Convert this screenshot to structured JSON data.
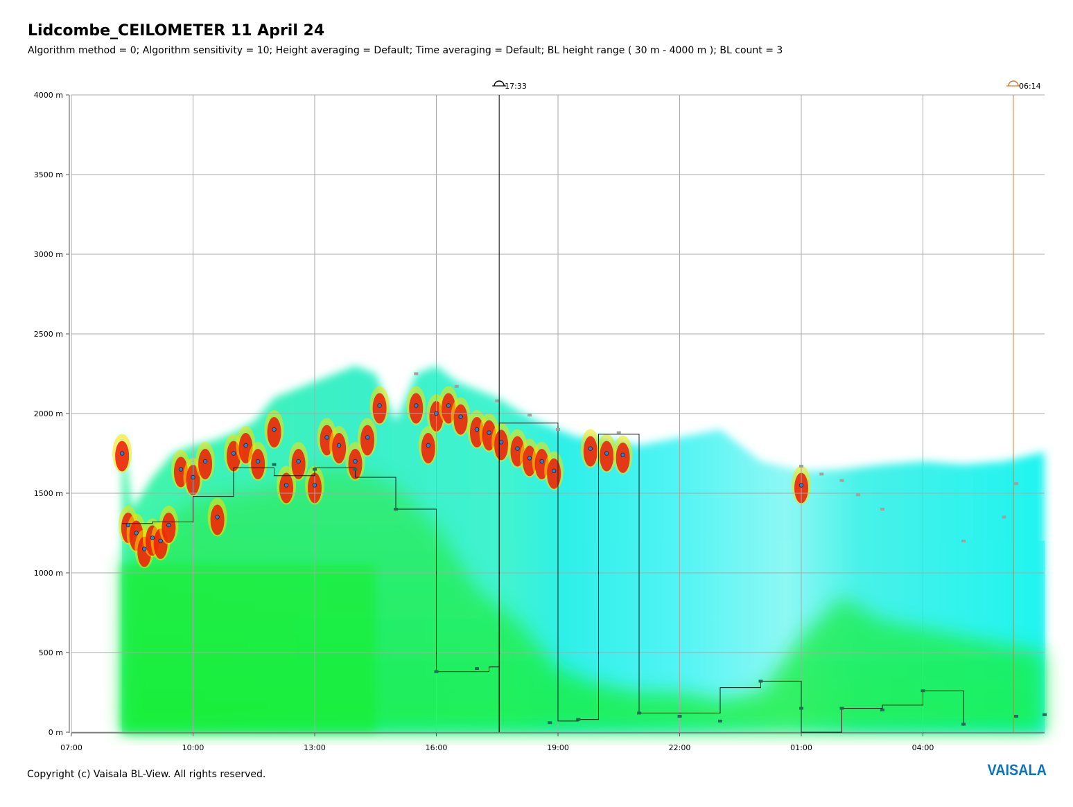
{
  "header": {
    "title": "Lidcombe_CEILOMETER 11 April 24",
    "subtitle": "Algorithm method = 0; Algorithm sensitivity = 10; Height averaging = Default; Time averaging = Default; BL height range ( 30 m - 4000 m ); BL count = 3"
  },
  "footer": {
    "copyright": "Copyright (c) Vaisala BL-View. All rights reserved.",
    "brand": "VAISALA",
    "brand_color": "#0d73bf"
  },
  "chart_data": {
    "type": "heatmap",
    "title": "Lidcombe_CEILOMETER 11 April 24",
    "xlabel": "",
    "ylabel": "",
    "x_range": [
      "07:00",
      "07:00 (+24h)"
    ],
    "ylim": [
      0,
      4000
    ],
    "grid": true,
    "x_ticks": [
      "07:00",
      "10:00",
      "13:00",
      "16:00",
      "19:00",
      "22:00",
      "01:00",
      "04:00"
    ],
    "y_ticks": [
      "0 m",
      "500 m",
      "1000 m",
      "1500 m",
      "2000 m",
      "2500 m",
      "3000 m",
      "3500 m",
      "4000 m"
    ],
    "y_tick_values": [
      0,
      500,
      1000,
      1500,
      2000,
      2500,
      3000,
      3500,
      4000
    ],
    "x_tick_hours": [
      0,
      3,
      6,
      9,
      12,
      15,
      18,
      21
    ],
    "events": [
      {
        "label": "17:33",
        "hour": 10.55,
        "kind": "sunset",
        "color": "#000000"
      },
      {
        "label": "06:14",
        "hour": 23.23,
        "kind": "sunrise",
        "color": "#d9772c"
      }
    ],
    "backscatter_top": [
      [
        1.25,
        1900
      ],
      [
        1.5,
        1400
      ],
      [
        2,
        1600
      ],
      [
        2.5,
        1750
      ],
      [
        3,
        1800
      ],
      [
        3.5,
        1830
      ],
      [
        4,
        1880
      ],
      [
        4.5,
        1950
      ],
      [
        5,
        2100
      ],
      [
        5.5,
        2150
      ],
      [
        6,
        2200
      ],
      [
        6.5,
        2250
      ],
      [
        7,
        2300
      ],
      [
        7.5,
        2250
      ],
      [
        8,
        1950
      ],
      [
        8.5,
        2250
      ],
      [
        9,
        2300
      ],
      [
        9.5,
        2200
      ],
      [
        10,
        2150
      ],
      [
        10.5,
        2100
      ],
      [
        11,
        2020
      ],
      [
        11.5,
        1950
      ],
      [
        12,
        1900
      ],
      [
        12.5,
        1850
      ],
      [
        13,
        1850
      ],
      [
        14,
        1800
      ],
      [
        15,
        1850
      ],
      [
        16,
        1900
      ],
      [
        17,
        1700
      ],
      [
        18,
        1640
      ],
      [
        19,
        1650
      ],
      [
        20,
        1680
      ],
      [
        21,
        1700
      ],
      [
        22,
        1680
      ],
      [
        23,
        1700
      ],
      [
        24,
        1760
      ]
    ],
    "aerosol_layer_top": [
      [
        1.25,
        1100
      ],
      [
        1.5,
        1050
      ],
      [
        2,
        1250
      ],
      [
        3,
        1450
      ],
      [
        4,
        1500
      ],
      [
        5,
        1550
      ],
      [
        6,
        1650
      ],
      [
        7,
        1650
      ],
      [
        8,
        1550
      ],
      [
        9,
        1300
      ],
      [
        10,
        900
      ],
      [
        11,
        700
      ],
      [
        12,
        400
      ],
      [
        13,
        300
      ],
      [
        14,
        250
      ],
      [
        15,
        250
      ],
      [
        16,
        200
      ],
      [
        17,
        250
      ],
      [
        18,
        600
      ],
      [
        19,
        850
      ],
      [
        20,
        700
      ],
      [
        21,
        650
      ],
      [
        22,
        600
      ],
      [
        23,
        550
      ],
      [
        24,
        500
      ]
    ],
    "cloud_base_points": [
      [
        1.25,
        1750
      ],
      [
        1.4,
        1300
      ],
      [
        1.6,
        1250
      ],
      [
        1.8,
        1150
      ],
      [
        2,
        1220
      ],
      [
        2.2,
        1200
      ],
      [
        2.4,
        1300
      ],
      [
        2.7,
        1650
      ],
      [
        3,
        1600
      ],
      [
        3.3,
        1700
      ],
      [
        3.6,
        1350
      ],
      [
        4,
        1750
      ],
      [
        4.3,
        1800
      ],
      [
        4.6,
        1700
      ],
      [
        5,
        1900
      ],
      [
        5.3,
        1550
      ],
      [
        5.6,
        1700
      ],
      [
        6,
        1550
      ],
      [
        6.3,
        1850
      ],
      [
        6.6,
        1800
      ],
      [
        7,
        1700
      ],
      [
        7.3,
        1850
      ],
      [
        7.6,
        2050
      ],
      [
        8.5,
        2050
      ],
      [
        8.8,
        1800
      ],
      [
        9,
        2000
      ],
      [
        9.3,
        2050
      ],
      [
        9.6,
        1980
      ],
      [
        10,
        1900
      ],
      [
        10.3,
        1880
      ],
      [
        10.6,
        1820
      ],
      [
        11,
        1780
      ],
      [
        11.3,
        1720
      ],
      [
        11.6,
        1700
      ],
      [
        11.9,
        1640
      ],
      [
        12.8,
        1780
      ],
      [
        13.2,
        1750
      ],
      [
        13.6,
        1740
      ],
      [
        18,
        1550
      ]
    ],
    "bl_step_line": [
      [
        1.25,
        1310
      ],
      [
        2,
        1320
      ],
      [
        3,
        1480
      ],
      [
        4,
        1660
      ],
      [
        5,
        1610
      ],
      [
        6,
        1660
      ],
      [
        7,
        1600
      ],
      [
        8,
        1400
      ],
      [
        9,
        380
      ],
      [
        10.3,
        410
      ],
      [
        10.55,
        0
      ],
      [
        10.55,
        1940
      ],
      [
        12,
        70
      ],
      [
        12.5,
        80
      ],
      [
        13,
        1870
      ],
      [
        14,
        120
      ],
      [
        15,
        120
      ],
      [
        16,
        280
      ],
      [
        17,
        320
      ],
      [
        18,
        0
      ],
      [
        19,
        150
      ],
      [
        20,
        170
      ],
      [
        21,
        260
      ],
      [
        22,
        40
      ]
    ],
    "bl_dots_dark": [
      [
        5,
        1680
      ],
      [
        6,
        1650
      ],
      [
        7,
        1650
      ],
      [
        8,
        1400
      ],
      [
        9,
        380
      ],
      [
        10,
        400
      ],
      [
        11.8,
        60
      ],
      [
        12.5,
        80
      ],
      [
        14,
        120
      ],
      [
        15,
        100
      ],
      [
        16,
        70
      ],
      [
        17,
        320
      ],
      [
        18,
        150
      ],
      [
        19,
        150
      ],
      [
        20,
        140
      ],
      [
        21,
        260
      ],
      [
        22,
        50
      ],
      [
        23.3,
        100
      ],
      [
        24,
        110
      ]
    ],
    "bl_dots_grey": [
      [
        8.5,
        2250
      ],
      [
        9.5,
        2170
      ],
      [
        10.5,
        2080
      ],
      [
        11.3,
        1990
      ],
      [
        12,
        1900
      ],
      [
        13.5,
        1880
      ],
      [
        18,
        1670
      ],
      [
        18.5,
        1620
      ],
      [
        19,
        1580
      ],
      [
        19.4,
        1490
      ],
      [
        20,
        1400
      ],
      [
        22,
        1200
      ],
      [
        23,
        1350
      ],
      [
        23.3,
        1560
      ]
    ]
  }
}
